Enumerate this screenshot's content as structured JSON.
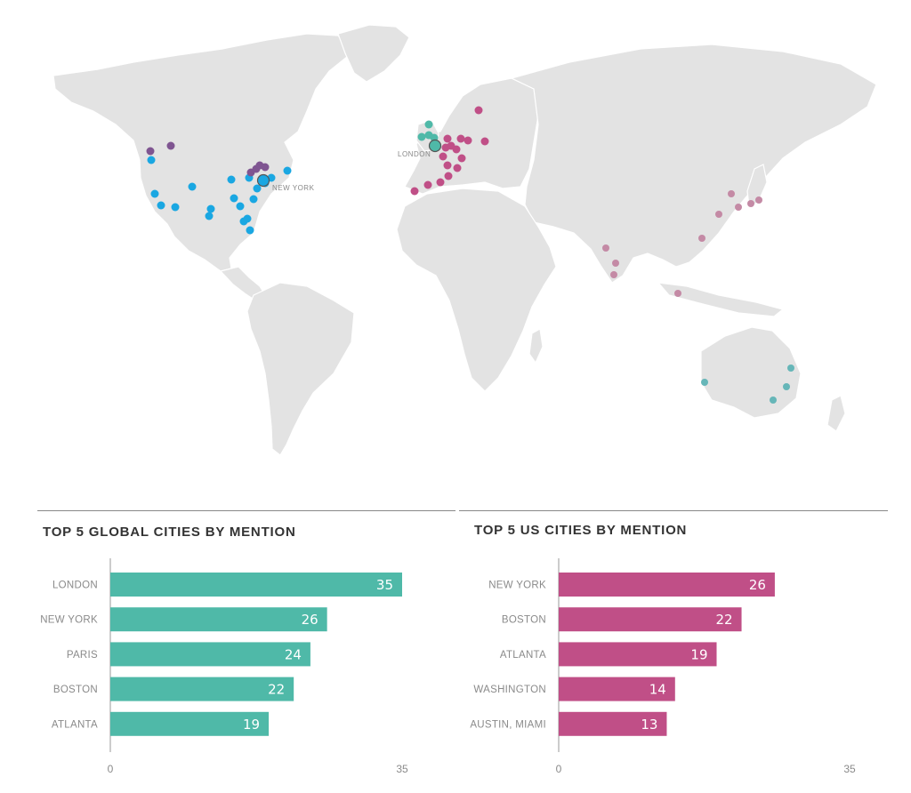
{
  "colors": {
    "land": "#e3e3e3",
    "teal": "#4fb9a8",
    "magenta": "#c04f87",
    "purple": "#7f5591",
    "blue": "#1aa7e2",
    "pink_dot": "#c48aa5",
    "teal_dot": "#66b6b8",
    "axis": "#999999"
  },
  "map": {
    "labels": {
      "london": "LONDON",
      "new_york": "NEW YORK"
    }
  },
  "chart_data": [
    {
      "type": "bar",
      "orientation": "horizontal",
      "title": "TOP 5 GLOBAL CITIES BY MENTION",
      "categories": [
        "LONDON",
        "NEW YORK",
        "PARIS",
        "BOSTON",
        "ATLANTA"
      ],
      "values": [
        35,
        26,
        24,
        22,
        19
      ],
      "xlim": [
        0,
        35
      ],
      "ticks": [
        0,
        35
      ],
      "color": "#4fb9a8",
      "grid": false
    },
    {
      "type": "bar",
      "orientation": "horizontal",
      "title": "TOP 5 US CITIES BY MENTION",
      "categories": [
        "NEW YORK",
        "BOSTON",
        "ATLANTA",
        "WASHINGTON",
        "AUSTIN, MIAMI"
      ],
      "values": [
        26,
        22,
        19,
        14,
        13
      ],
      "xlim": [
        0,
        35
      ],
      "ticks": [
        0,
        35
      ],
      "color": "#c04f87",
      "grid": false
    }
  ]
}
